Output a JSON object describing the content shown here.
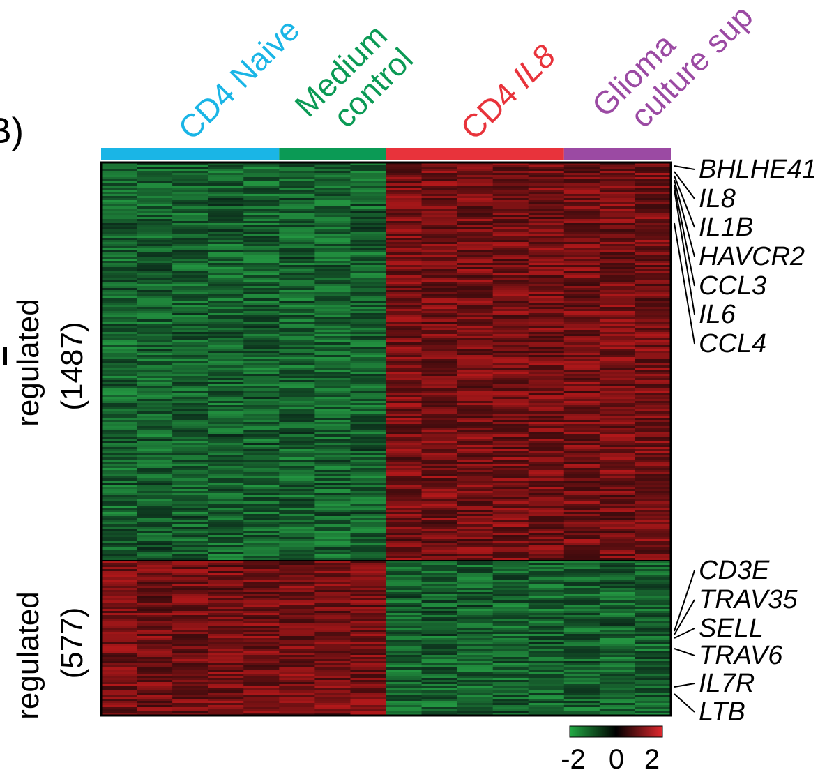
{
  "panel_label": "B)",
  "chart_data": {
    "type": "heatmap",
    "title": "",
    "groups": [
      {
        "label_lines": [
          "CD4 Naive"
        ],
        "color": "#1ab5e6",
        "columns": 5
      },
      {
        "label_lines": [
          "Medium",
          "control"
        ],
        "color": "#0b9a55",
        "columns": 3
      },
      {
        "label_lines": [
          "CD4 ",
          "IL8"
        ],
        "label_italic_part": "IL8",
        "color": "#e8333b",
        "columns": 5
      },
      {
        "label_lines": [
          "Glioma",
          "culture sup"
        ],
        "color": "#9b4aa3",
        "columns": 3
      }
    ],
    "row_blocks": [
      {
        "label_lines": [
          "regulated",
          "(1487)"
        ],
        "gene_count": 1487,
        "pattern": [
          "green",
          "green",
          "green",
          "green",
          "green",
          "green",
          "green",
          "green",
          "red",
          "red",
          "red",
          "red",
          "red",
          "red",
          "red",
          "red"
        ]
      },
      {
        "label_lines": [
          "regulated",
          "(577)"
        ],
        "gene_count": 577,
        "pattern": [
          "red",
          "red",
          "red",
          "red",
          "red",
          "red",
          "red",
          "red",
          "green",
          "green",
          "green",
          "green",
          "green",
          "green",
          "green",
          "green"
        ]
      }
    ],
    "highlighted_genes_up": [
      "BHLHE41",
      "IL8",
      "IL1B",
      "HAVCR2",
      "CCL3",
      "IL6",
      "CCL4"
    ],
    "highlighted_genes_down": [
      "CD3E",
      "TRAV35",
      "SELL",
      "TRAV6",
      "IL7R",
      "LTB"
    ],
    "colorbar": {
      "colors": [
        "#22aa44",
        "#000000",
        "#e0282e"
      ],
      "ticks": [
        "-2",
        "0",
        "2"
      ],
      "range": [
        -2,
        2
      ]
    }
  }
}
